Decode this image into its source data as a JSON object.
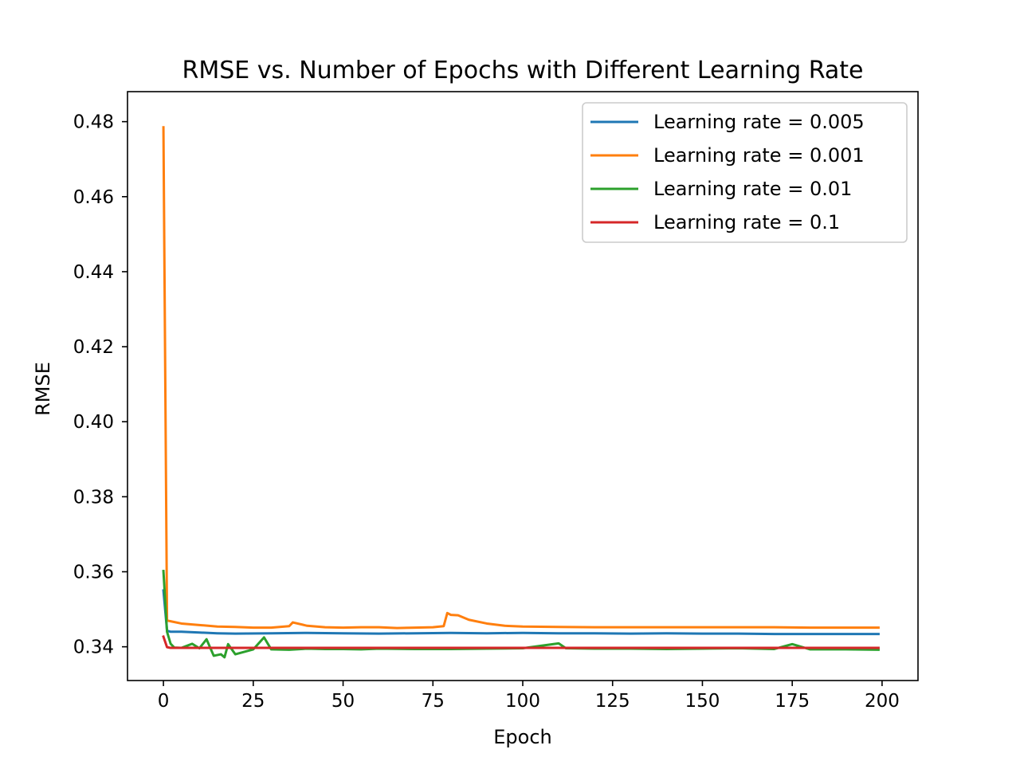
{
  "chart_data": {
    "type": "line",
    "title": "RMSE vs. Number of Epochs with Different Learning Rate",
    "xlabel": "Epoch",
    "ylabel": "RMSE",
    "xlim": [
      -10,
      210
    ],
    "ylim": [
      0.331,
      0.488
    ],
    "xticks": [
      0,
      25,
      50,
      75,
      100,
      125,
      150,
      175,
      200
    ],
    "xtick_labels": [
      "0",
      "25",
      "50",
      "75",
      "100",
      "125",
      "150",
      "175",
      "200"
    ],
    "yticks": [
      0.34,
      0.36,
      0.38,
      0.4,
      0.42,
      0.44,
      0.46,
      0.48
    ],
    "ytick_labels": [
      "0.34",
      "0.36",
      "0.38",
      "0.40",
      "0.42",
      "0.44",
      "0.46",
      "0.48"
    ],
    "grid": false,
    "legend_position": "top-right",
    "series": [
      {
        "name": "Learning rate = 0.005",
        "color": "#1f77b4",
        "x": [
          0,
          1,
          2,
          5,
          10,
          15,
          20,
          30,
          40,
          50,
          60,
          70,
          80,
          90,
          100,
          110,
          120,
          130,
          140,
          150,
          160,
          170,
          180,
          190,
          199
        ],
        "y": [
          0.355,
          0.3443,
          0.344,
          0.344,
          0.3438,
          0.3436,
          0.3435,
          0.3436,
          0.3437,
          0.3436,
          0.3435,
          0.3436,
          0.3437,
          0.3436,
          0.3437,
          0.3436,
          0.3436,
          0.3435,
          0.3436,
          0.3435,
          0.3435,
          0.3434,
          0.3434,
          0.3434,
          0.3434
        ]
      },
      {
        "name": "Learning rate = 0.001",
        "color": "#ff7f0e",
        "x": [
          0,
          1,
          2,
          5,
          10,
          15,
          20,
          25,
          30,
          35,
          36,
          40,
          45,
          50,
          55,
          60,
          65,
          70,
          75,
          78,
          79,
          80,
          82,
          85,
          90,
          95,
          100,
          110,
          120,
          130,
          140,
          150,
          160,
          170,
          180,
          190,
          199
        ],
        "y": [
          0.4785,
          0.347,
          0.3468,
          0.3462,
          0.3458,
          0.3454,
          0.3453,
          0.3451,
          0.3451,
          0.3455,
          0.3465,
          0.3456,
          0.3452,
          0.3451,
          0.3452,
          0.3452,
          0.345,
          0.3451,
          0.3452,
          0.3455,
          0.349,
          0.3485,
          0.3484,
          0.3472,
          0.3462,
          0.3456,
          0.3454,
          0.3453,
          0.3452,
          0.3452,
          0.3452,
          0.3452,
          0.3452,
          0.3452,
          0.3451,
          0.3451,
          0.3451
        ]
      },
      {
        "name": "Learning rate = 0.01",
        "color": "#2ca02c",
        "x": [
          0,
          1,
          2,
          3,
          5,
          8,
          10,
          12,
          14,
          16,
          17,
          18,
          20,
          25,
          28,
          30,
          35,
          40,
          45,
          50,
          55,
          60,
          70,
          80,
          90,
          100,
          110,
          112,
          120,
          130,
          140,
          150,
          160,
          170,
          175,
          180,
          190,
          199
        ],
        "y": [
          0.3602,
          0.344,
          0.3408,
          0.3398,
          0.3397,
          0.3408,
          0.3396,
          0.342,
          0.3376,
          0.338,
          0.3372,
          0.3407,
          0.338,
          0.3393,
          0.3425,
          0.3393,
          0.3392,
          0.3395,
          0.3394,
          0.3394,
          0.3393,
          0.3395,
          0.3394,
          0.3394,
          0.3395,
          0.3396,
          0.3409,
          0.3396,
          0.3395,
          0.3395,
          0.3394,
          0.3395,
          0.3396,
          0.3394,
          0.3407,
          0.3393,
          0.3393,
          0.3392
        ]
      },
      {
        "name": "Learning rate = 0.1",
        "color": "#d62728",
        "x": [
          0,
          1,
          2,
          5,
          10,
          20,
          40,
          60,
          80,
          100,
          120,
          140,
          160,
          180,
          199
        ],
        "y": [
          0.3427,
          0.3399,
          0.3397,
          0.3397,
          0.3397,
          0.3397,
          0.3397,
          0.3397,
          0.3397,
          0.3397,
          0.3397,
          0.3397,
          0.3397,
          0.3397,
          0.3397
        ]
      }
    ]
  }
}
